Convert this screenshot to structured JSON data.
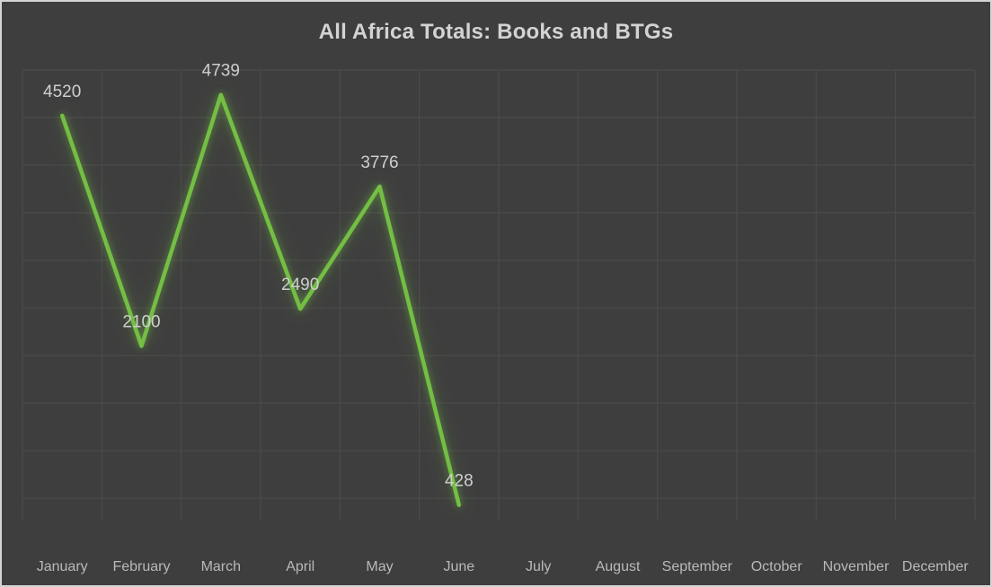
{
  "chart_data": {
    "type": "line",
    "title": "All Africa Totals: Books and BTGs",
    "categories": [
      "January",
      "February",
      "March",
      "April",
      "May",
      "June",
      "July",
      "August",
      "September",
      "October",
      "November",
      "December"
    ],
    "series": [
      {
        "values": [
          4520,
          2100,
          4739,
          2490,
          3776,
          428,
          null,
          null,
          null,
          null,
          null,
          null
        ]
      }
    ],
    "data_labels": true,
    "ylim": [
      270,
      5000
    ],
    "gridline_step": 500,
    "grid": true,
    "legend": false,
    "line_color": "#74BE44",
    "line_glow": true
  },
  "colors": {
    "background": "#3E3E3E",
    "canvas_border": "#D5D5D5",
    "gridline": "#4D4D4D",
    "title_text": "#D3D3D3",
    "axis_text": "#B9B9B9",
    "data_label_text": "#CFCFCF",
    "line": "#74BE44"
  }
}
